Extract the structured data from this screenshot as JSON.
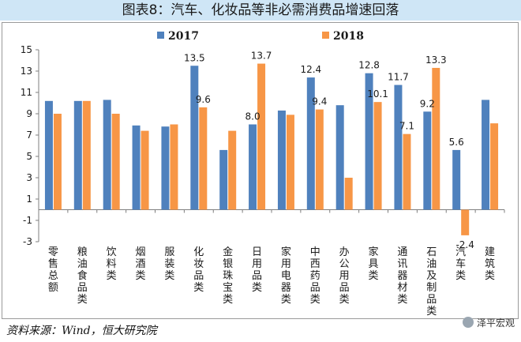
{
  "title": "图表8：汽车、化妆品等非必需消费品增速回落",
  "source": "资料来源：Wind，恒大研究院",
  "watermark": "泽平宏观",
  "colors": {
    "s2017": "#4f81bd",
    "s2018": "#f79646",
    "axis": "#7f7f7f",
    "text": "#1a1a1a"
  },
  "chart_data": {
    "type": "bar",
    "categories": [
      "零售总额",
      "粮油食品类",
      "饮料类",
      "烟酒类",
      "服装类",
      "化妆品类",
      "金银珠宝类",
      "日用品类",
      "家用电器类",
      "中西药品类",
      "办公用品类",
      "家具类",
      "通讯器材类",
      "石油及制品类",
      "汽车类",
      "建筑类"
    ],
    "series": [
      {
        "name": "2017",
        "values": [
          10.2,
          10.2,
          10.3,
          7.9,
          7.8,
          13.5,
          5.6,
          8.0,
          9.3,
          12.4,
          9.8,
          12.8,
          11.7,
          9.2,
          5.6,
          10.3
        ]
      },
      {
        "name": "2018",
        "values": [
          9.0,
          10.2,
          9.0,
          7.4,
          8.0,
          9.6,
          7.4,
          13.7,
          8.9,
          9.4,
          3.0,
          10.1,
          7.1,
          13.3,
          -2.4,
          8.1
        ]
      }
    ],
    "data_labels": [
      {
        "series": 0,
        "index": 5,
        "text": "13.5"
      },
      {
        "series": 1,
        "index": 5,
        "text": "9.6"
      },
      {
        "series": 0,
        "index": 7,
        "text": "8.0"
      },
      {
        "series": 1,
        "index": 7,
        "text": "13.7"
      },
      {
        "series": 0,
        "index": 9,
        "text": "12.4"
      },
      {
        "series": 1,
        "index": 9,
        "text": "9.4"
      },
      {
        "series": 0,
        "index": 11,
        "text": "12.8"
      },
      {
        "series": 1,
        "index": 11,
        "text": "10.1"
      },
      {
        "series": 0,
        "index": 12,
        "text": "11.7"
      },
      {
        "series": 1,
        "index": 12,
        "text": "7.1"
      },
      {
        "series": 0,
        "index": 13,
        "text": "9.2"
      },
      {
        "series": 1,
        "index": 13,
        "text": "13.3"
      },
      {
        "series": 0,
        "index": 14,
        "text": "5.6"
      },
      {
        "series": 1,
        "index": 14,
        "text": "-2.4"
      }
    ],
    "yticks": [
      -3,
      -1,
      1,
      3,
      5,
      7,
      9,
      11,
      13,
      15
    ],
    "ylim": [
      -3,
      15
    ],
    "legend_position": "top-center",
    "grid": false
  }
}
